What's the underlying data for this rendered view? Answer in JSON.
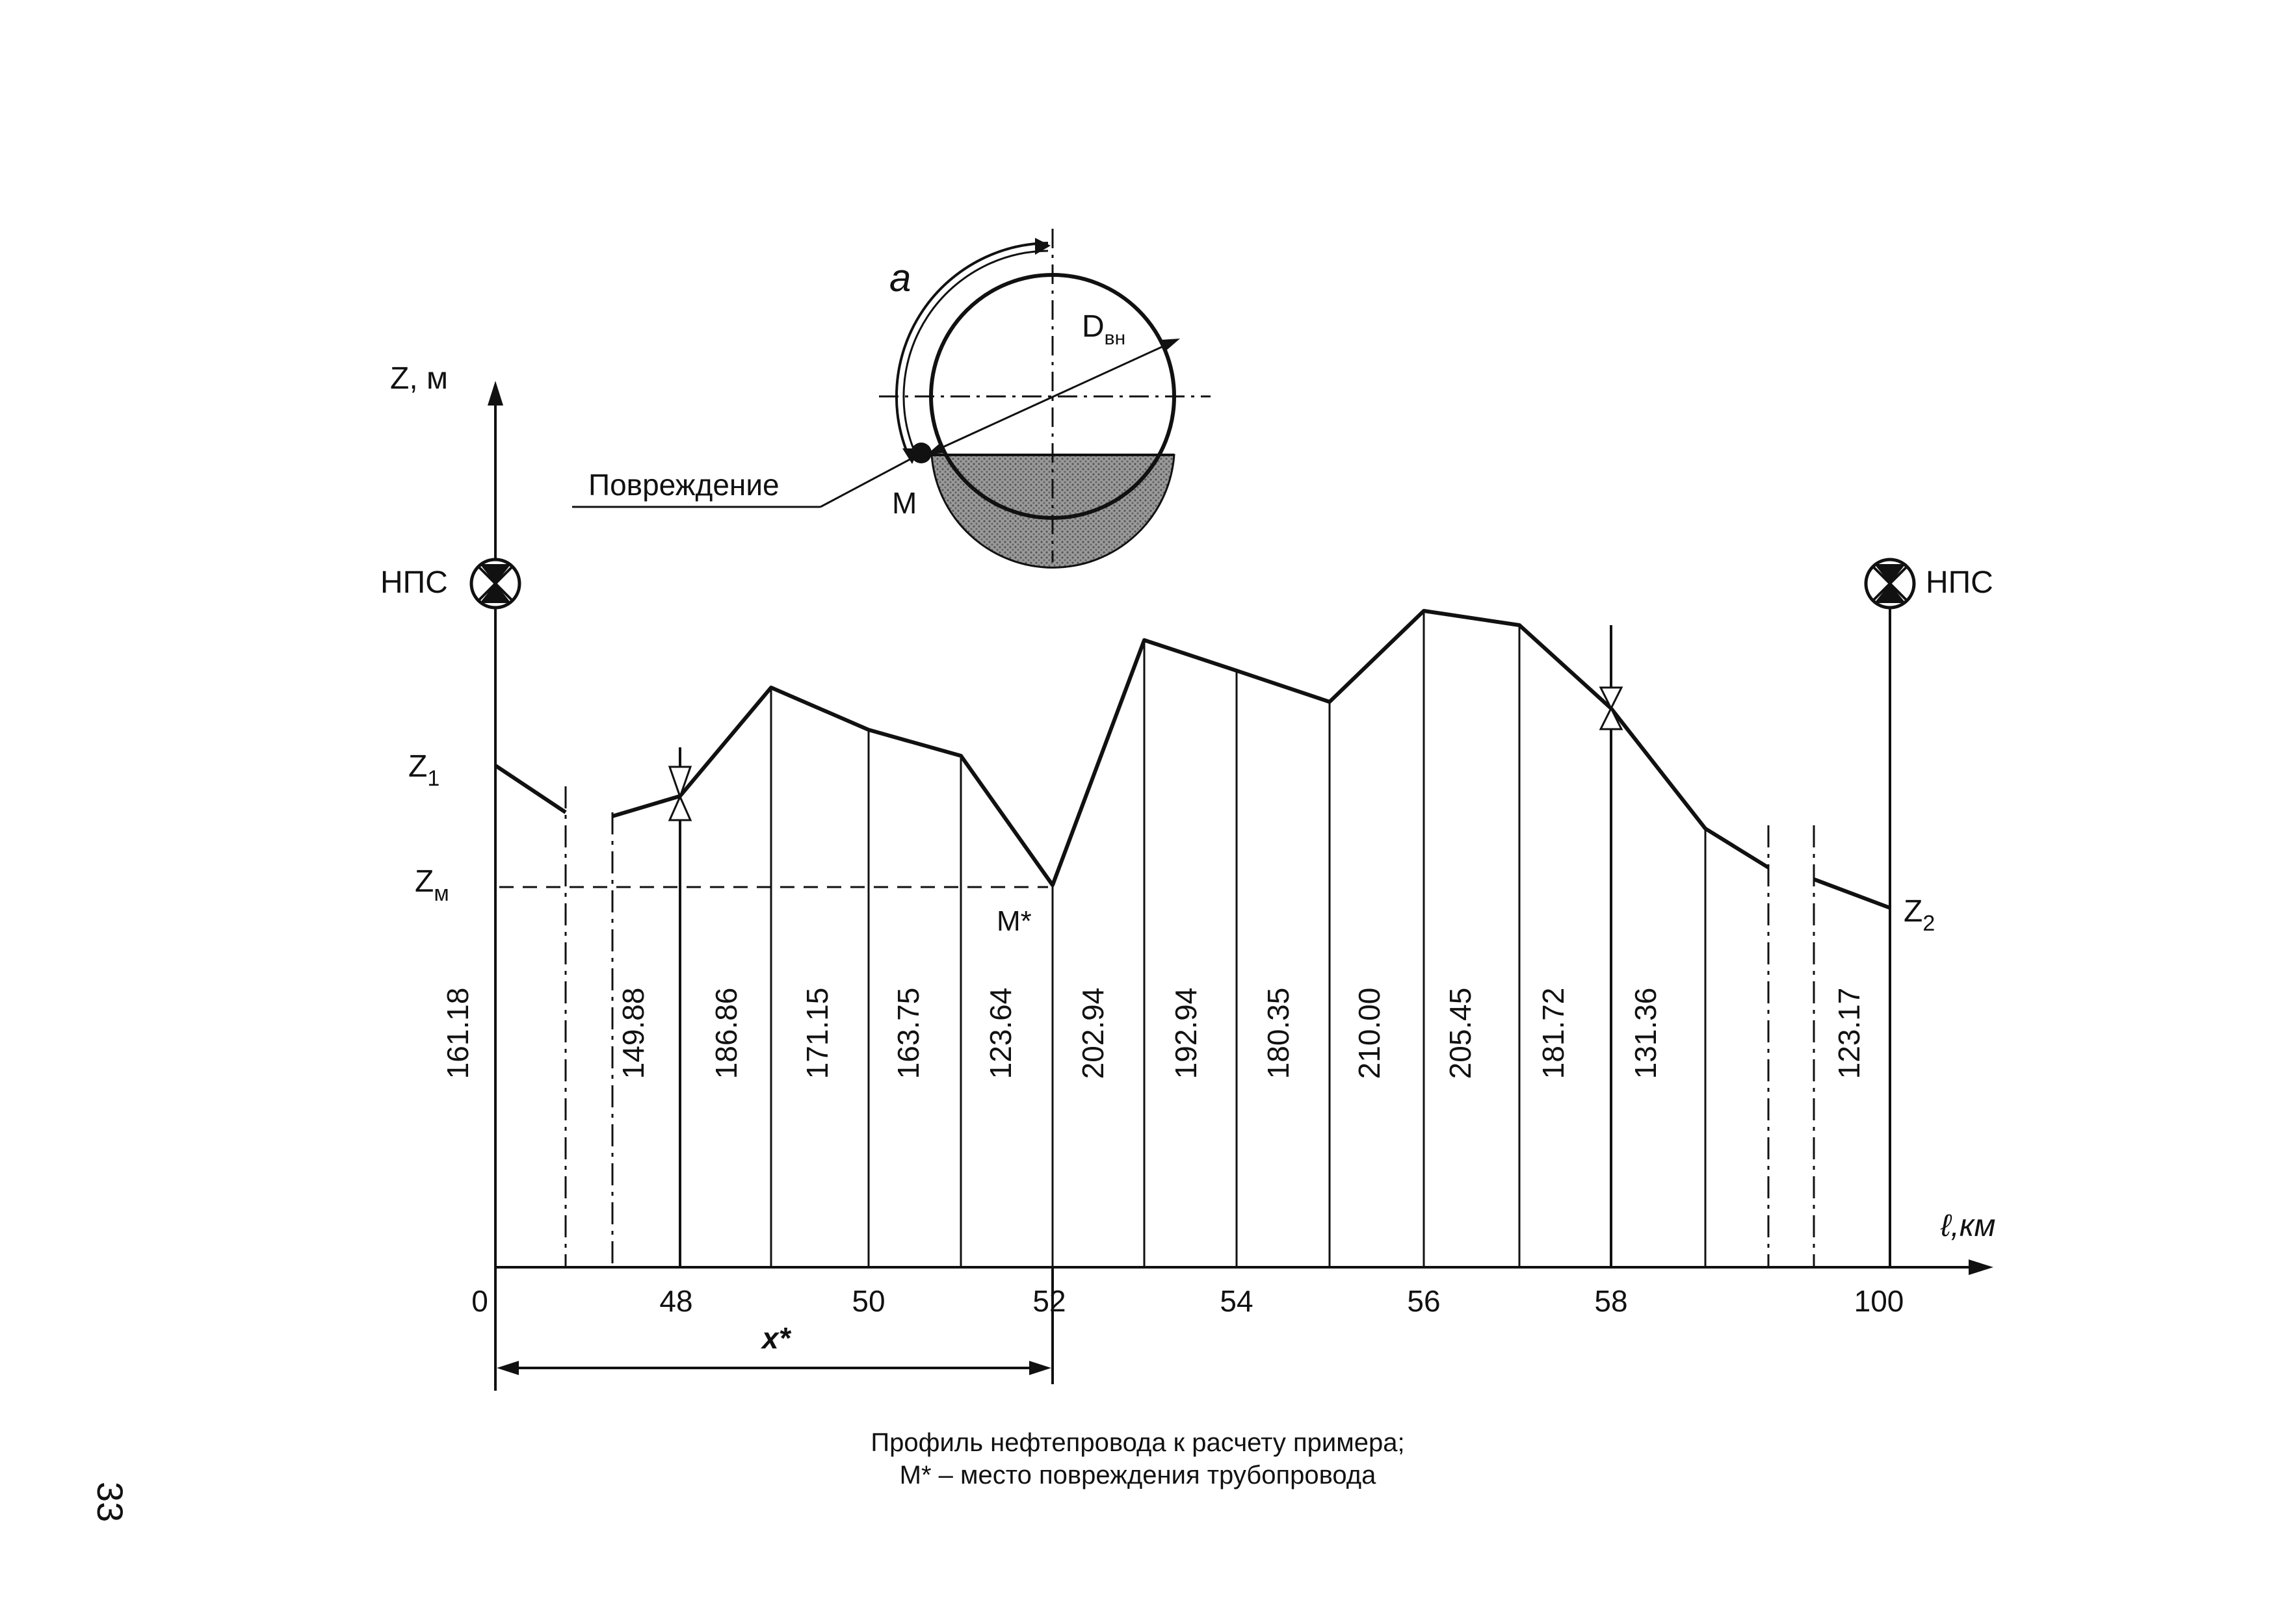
{
  "axes": {
    "y_label": "Z, м",
    "x_label": "ℓ,км"
  },
  "stations": {
    "left_label": "НПС",
    "right_label": "НПС"
  },
  "levels": {
    "z1": "Z",
    "z1_sub": "1",
    "zm": "Z",
    "zm_sub": "м",
    "z2": "Z",
    "z2_sub": "2",
    "m_star": "M*"
  },
  "inset": {
    "angle_label": "a",
    "diameter_label": "D",
    "diameter_sub": "вн",
    "damage_label": "Повреждение",
    "point_label": "M"
  },
  "dimension": {
    "label": "x*"
  },
  "chart_data": {
    "type": "line",
    "xlabel": "ℓ,км",
    "ylabel": "Z, м",
    "x_ticks": [
      "0",
      "48",
      "50",
      "52",
      "54",
      "56",
      "58",
      "100"
    ],
    "elevations": [
      "161.18",
      "149.88",
      "186.86",
      "171.15",
      "163.75",
      "123.64",
      "202.94",
      "192.94",
      "180.35",
      "210.00",
      "205.45",
      "181.72",
      "131.36",
      "123.17"
    ]
  },
  "caption": {
    "line1": "Профиль нефтепровода к расчету примера;",
    "line2": "M* – место повреждения трубопровода"
  },
  "page_number": "33"
}
